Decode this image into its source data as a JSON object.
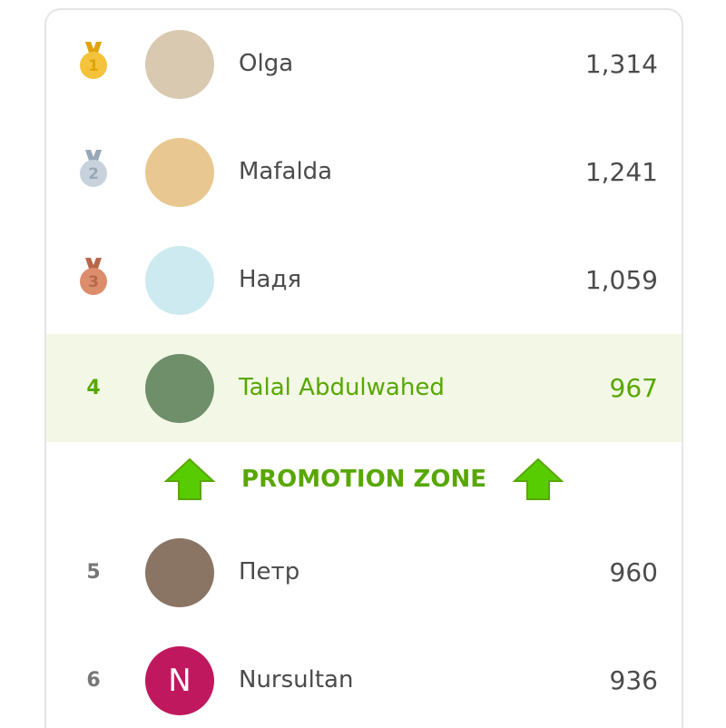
{
  "leaderboard": {
    "rows": [
      {
        "rank": 1,
        "name": "Olga",
        "score": "1,314"
      },
      {
        "rank": 2,
        "name": "Mafalda",
        "score": "1,241"
      },
      {
        "rank": 3,
        "name": "Надя",
        "score": "1,059"
      },
      {
        "rank": 4,
        "name": "Talal Abdulwahed",
        "score": "967"
      },
      {
        "rank": 5,
        "name": "Петр",
        "score": "960"
      },
      {
        "rank": 6,
        "name": "Nursultan",
        "score": "936",
        "initial": "N"
      }
    ],
    "promotion_zone": "PROMOTION ZONE"
  }
}
